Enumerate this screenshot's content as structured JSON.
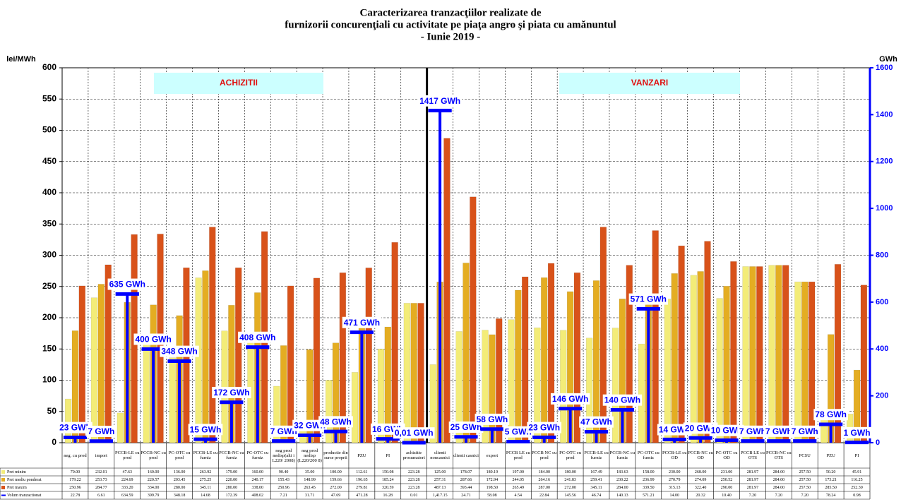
{
  "chart_data": {
    "type": "bar",
    "title": [
      "Caracterizarea tranzacţiilor realizate de",
      "furnizorii concurenţiali cu activitate pe piaţa angro şi piata cu amănuntul",
      "- Iunie 2019 -"
    ],
    "ylabel": "lei/MWh",
    "y2label": "GWh",
    "annotations": [
      "ACHIZITII",
      "VANZARI"
    ],
    "categories": [
      "neg. cu prod",
      "import",
      "PCCB-LE cu prod",
      "PCCB-NC cu prod",
      "PC-OTC cu prod",
      "PCCB-LE cu furniz",
      "PCCB-NC cu furniz",
      "PC-OTC cu furniz",
      "neg prod nedisp(alti i L220/ 2008)",
      "neg prod nedisp (L220/200 8)",
      "productie din surse proprii",
      "PZU",
      "PI",
      "achizitie prosumatori",
      "clienti noncasnici",
      "clienti casnici",
      "export",
      "PCCB LE cu prod",
      "PCCB NC cu prod",
      "PC-OTC cu prod",
      "PCCB-LE cu furniz",
      "PCCB-NC cu furniz",
      "PC-OTC cu furniz",
      "PCCB-LE cu OD",
      "PCCB-NC cu OD",
      "PC-OTC cu OD",
      "PCCB LE cu OTS",
      "PCCB-NC cu OTS",
      "PCSU",
      "PZU",
      "PI"
    ],
    "series": [
      {
        "name": "Pret minim",
        "color": "#f3ec78",
        "values": [
          70.0,
          232.01,
          47.63,
          160.0,
          136.0,
          263.92,
          179.0,
          160.0,
          90.4,
          35.0,
          100.0,
          112.61,
          150.08,
          223.28,
          125.0,
          178.07,
          180.19,
          197.0,
          184.0,
          180.0,
          167.49,
          183.63,
          158.0,
          230.0,
          268.0,
          231.0,
          281.97,
          284.0,
          257.5,
          50.2,
          45.91
        ],
        "table_labels": [
          "70.00",
          "232.01",
          "47.63",
          "160.00",
          "136.00",
          "263.92",
          "179.00",
          "160.00",
          "90.40",
          "35.00",
          "100.00",
          "112.61",
          "150.08",
          "223.28",
          "125.00",
          "178.07",
          "180.19",
          "197.00",
          "184.00",
          "180.00",
          "167.49",
          "183.63",
          "158.00",
          "230.00",
          "268.00",
          "231.00",
          "281.97",
          "284.00",
          "257.50",
          "50.20",
          "45.91"
        ]
      },
      {
        "name": "Pret mediu ponderat",
        "color": "#e4ad22",
        "values": [
          179.22,
          253.73,
          224.69,
          220.57,
          203.45,
          275.25,
          220.0,
          240.17,
          155.43,
          148.99,
          159.66,
          196.65,
          185.24,
          223.28,
          257.31,
          287.66,
          172.94,
          244.05,
          264.16,
          241.83,
          259.41,
          230.22,
          236.99,
          270.79,
          274.09,
          250.52,
          281.97,
          284.0,
          257.5,
          173.21,
          116.25
        ],
        "table_labels": [
          "179.22",
          "253.73",
          "224.69",
          "220.57",
          "203.45",
          "275.25",
          "220.00",
          "240.17",
          "155.43",
          "148.99",
          "159.66",
          "196.65",
          "185.24",
          "223.28",
          "257.31",
          "287.66",
          "172.94",
          "244.05",
          "264.16",
          "241.83",
          "259.41",
          "230.22",
          "236.99",
          "270.79",
          "274.09",
          "250.52",
          "281.97",
          "284.00",
          "257.50",
          "173.21",
          "116.25"
        ]
      },
      {
        "name": "Pret maxim",
        "color": "#d8521a",
        "values": [
          250.96,
          284.77,
          333.2,
          334.0,
          280.0,
          345.11,
          280.0,
          338.0,
          250.96,
          263.45,
          272.0,
          279.81,
          320.59,
          223.28,
          487.13,
          393.44,
          198.5,
          265.49,
          287.0,
          272.0,
          345.11,
          284.0,
          339.5,
          315.13,
          322.4,
          290.0,
          281.97,
          284.0,
          257.5,
          285.5,
          252.3
        ],
        "table_labels": [
          "250.96",
          "284.77",
          "333.20",
          "334.00",
          "280.00",
          "345.11",
          "280.00",
          "338.00",
          "250.96",
          "263.45",
          "272.00",
          "279.81",
          "320.59",
          "223.28",
          "487.13",
          "393.44",
          "198.50",
          "265.49",
          "287.00",
          "272.00",
          "345.11",
          "284.00",
          "339.50",
          "315.13",
          "322.40",
          "290.00",
          "281.97",
          "284.00",
          "257.50",
          "285.50",
          "252.30"
        ]
      },
      {
        "name": "Volum tranzactionat",
        "color": "#0000ff",
        "axis": "y2",
        "values": [
          22.78,
          6.61,
          634.59,
          399.79,
          348.18,
          14.68,
          172.39,
          408.02,
          7.21,
          31.71,
          47.69,
          471.28,
          16.28,
          0.01,
          1417.15,
          24.71,
          58.08,
          4.54,
          22.84,
          145.56,
          46.74,
          140.13,
          571.21,
          14.0,
          20.32,
          10.4,
          7.2,
          7.2,
          7.2,
          78.24,
          0.98
        ],
        "table_labels": [
          "22.78",
          "6.61",
          "634.59",
          "399.79",
          "348.18",
          "14.68",
          "172.39",
          "408.02",
          "7.21",
          "31.71",
          "47.69",
          "471.28",
          "16.28",
          "0.01",
          "1,417.15",
          "24.71",
          "58.08",
          "4.54",
          "22.84",
          "145.56",
          "46.74",
          "140.13",
          "571.21",
          "14.00",
          "20.32",
          "10.40",
          "7.20",
          "7.20",
          "7.20",
          "78.24",
          "0.98"
        ],
        "value_labels": [
          "23 GWh",
          "7 GWh",
          "635 GWh",
          "400 GWh",
          "348 GWh",
          "15 GWh",
          "172 GWh",
          "408 GWh",
          "7 GWh",
          "32 GWh",
          "48 GWh",
          "471 GWh",
          "16 GWh",
          "0,01 GWh",
          "1417 GWh",
          "25 GWh",
          "58 GWh",
          "5 GWh",
          "23 GWh",
          "146 GWh",
          "47 GWh",
          "140 GWh",
          "571 GWh",
          "14 GWh",
          "20 GWh",
          "10 GWh",
          "7 GWh",
          "7 GWh",
          "7 GWh",
          "78 GWh",
          "1 GWh"
        ]
      }
    ],
    "ylim": [
      0,
      600
    ],
    "yticks": [
      0,
      50,
      100,
      150,
      200,
      250,
      300,
      350,
      400,
      450,
      500,
      550,
      600
    ],
    "y2lim": [
      0,
      1600
    ],
    "y2ticks": [
      0,
      200,
      400,
      600,
      800,
      1000,
      1200,
      1400,
      1600
    ],
    "grid": true
  }
}
